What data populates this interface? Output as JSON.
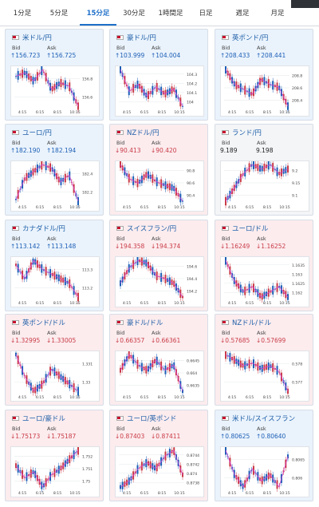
{
  "tabs": [
    {
      "label": "1分足",
      "active": false
    },
    {
      "label": "5分足",
      "active": false
    },
    {
      "label": "15分足",
      "active": true
    },
    {
      "label": "30分足",
      "active": false
    },
    {
      "label": "1時間足",
      "active": false
    },
    {
      "label": "日足",
      "active": false
    },
    {
      "label": "週足",
      "active": false
    },
    {
      "label": "月足",
      "active": false
    }
  ],
  "labels": {
    "bid": "Bid",
    "ask": "Ask"
  },
  "colors": {
    "up": "#1d5fb6",
    "down": "#c93b46",
    "title": "#1f5fa8",
    "ma": "#d63bd6"
  },
  "cards": [
    {
      "name": "usd-jpy",
      "pair": "米ドル/円",
      "trend": "up",
      "bid": "↑156.723",
      "ask": "↑156.725",
      "bid_dir": "up",
      "ask_dir": "up",
      "x_labels": [
        "4:15",
        "6:15",
        "8:15",
        "10:15"
      ],
      "y_labels": [
        "156.8",
        "156.6"
      ],
      "close": [
        156.78,
        156.8,
        156.75,
        156.82,
        156.7,
        156.74,
        156.72,
        156.6
      ]
    },
    {
      "name": "aud-jpy",
      "pair": "豪ドル/円",
      "trend": "up",
      "bid": "↑103.999",
      "ask": "↑104.004",
      "bid_dir": "up",
      "ask_dir": "up",
      "x_labels": [
        "4:15",
        "6:15",
        "8:15",
        "10:15"
      ],
      "y_labels": [
        "104.3",
        "104.2",
        "104.1",
        "104"
      ],
      "close": [
        104.3,
        104.12,
        104.18,
        104.08,
        104.16,
        104.1,
        104.14,
        104.0
      ]
    },
    {
      "name": "gbp-jpy",
      "pair": "英ポンド/円",
      "trend": "up",
      "bid": "↑208.433",
      "ask": "↑208.441",
      "bid_dir": "up",
      "ask_dir": "up",
      "x_labels": [
        "4:15",
        "6:15",
        "8:15",
        "10:15"
      ],
      "y_labels": [
        "208.8",
        "208.6",
        "208.4"
      ],
      "close": [
        208.8,
        208.65,
        208.6,
        208.55,
        208.7,
        208.65,
        208.62,
        208.43
      ]
    },
    {
      "name": "eur-jpy",
      "pair": "ユーロ/円",
      "trend": "up",
      "bid": "↑182.190",
      "ask": "↑182.194",
      "bid_dir": "up",
      "ask_dir": "up",
      "x_labels": [
        "4:15",
        "6:15",
        "8:15",
        "10:15"
      ],
      "y_labels": [
        "182.4",
        "182.2"
      ],
      "close": [
        182.2,
        182.32,
        182.36,
        182.4,
        182.38,
        182.3,
        182.34,
        182.19
      ]
    },
    {
      "name": "nzd-jpy",
      "pair": "NZドル/円",
      "trend": "down",
      "bid": "↓90.413",
      "ask": "↓90.420",
      "bid_dir": "down",
      "ask_dir": "down",
      "x_labels": [
        "4:15",
        "6:15",
        "8:15",
        "10:15"
      ],
      "y_labels": [
        "90.8",
        "90.6",
        "90.4"
      ],
      "close": [
        90.8,
        90.65,
        90.6,
        90.7,
        90.62,
        90.58,
        90.55,
        90.41
      ]
    },
    {
      "name": "zar-jpy",
      "pair": "ランド/円",
      "trend": "flat",
      "bid": "9.189",
      "ask": "9.198",
      "bid_dir": "flat",
      "ask_dir": "flat",
      "x_labels": [
        "4:15",
        "6:15",
        "8:15",
        "10:15"
      ],
      "y_labels": [
        "9.2",
        "9.15",
        "9.1"
      ],
      "close": [
        9.12,
        9.15,
        9.18,
        9.2,
        9.19,
        9.2,
        9.18,
        9.19
      ]
    },
    {
      "name": "cad-jpy",
      "pair": "カナダドル/円",
      "trend": "up",
      "bid": "↑113.142",
      "ask": "↑113.148",
      "bid_dir": "up",
      "ask_dir": "up",
      "x_labels": [
        "4:15",
        "6:15",
        "8:15",
        "10:15"
      ],
      "y_labels": [
        "113.3",
        "113.2"
      ],
      "close": [
        113.28,
        113.22,
        113.3,
        113.26,
        113.24,
        113.22,
        113.2,
        113.14
      ]
    },
    {
      "name": "chf-jpy",
      "pair": "スイスフラン/円",
      "trend": "down",
      "bid": "↓194.358",
      "ask": "↓194.374",
      "bid_dir": "down",
      "ask_dir": "down",
      "x_labels": [
        "4:15",
        "6:15",
        "8:15",
        "10:15"
      ],
      "y_labels": [
        "194.6",
        "194.4",
        "194.2"
      ],
      "close": [
        194.45,
        194.55,
        194.6,
        194.58,
        194.5,
        194.48,
        194.45,
        194.36
      ]
    },
    {
      "name": "eur-usd",
      "pair": "ユーロ/ドル",
      "trend": "down",
      "bid": "↓1.16249",
      "ask": "↓1.16252",
      "bid_dir": "down",
      "ask_dir": "down",
      "x_labels": [
        "4:15",
        "6:15",
        "8:15",
        "10:15"
      ],
      "y_labels": [
        "1.1635",
        "1.163",
        "1.1625",
        "1.162"
      ],
      "close": [
        1.1632,
        1.1628,
        1.1626,
        1.1627,
        1.1625,
        1.1626,
        1.1627,
        1.1625
      ]
    },
    {
      "name": "gbp-usd",
      "pair": "英ポンド/ドル",
      "trend": "down",
      "bid": "↓1.32995",
      "ask": "↓1.33005",
      "bid_dir": "down",
      "ask_dir": "down",
      "x_labels": [
        "4:15",
        "6:15",
        "8:15",
        "10:15"
      ],
      "y_labels": [
        "1.331",
        "1.33"
      ],
      "close": [
        1.3305,
        1.3302,
        1.33,
        1.3301,
        1.3303,
        1.3302,
        1.3301,
        1.33
      ]
    },
    {
      "name": "aud-usd",
      "pair": "豪ドル/ドル",
      "trend": "down",
      "bid": "↓0.66357",
      "ask": "↓0.66361",
      "bid_dir": "down",
      "ask_dir": "down",
      "x_labels": [
        "4:15",
        "6:15",
        "8:15",
        "10:15"
      ],
      "y_labels": [
        "0.6645",
        "0.664",
        "0.6635"
      ],
      "close": [
        0.664,
        0.6643,
        0.6641,
        0.664,
        0.6642,
        0.664,
        0.6641,
        0.6636
      ]
    },
    {
      "name": "nzd-usd",
      "pair": "NZドル/ドル",
      "trend": "down",
      "bid": "↓0.57685",
      "ask": "↓0.57699",
      "bid_dir": "down",
      "ask_dir": "down",
      "x_labels": [
        "4:15",
        "6:15",
        "8:15",
        "10:15"
      ],
      "y_labels": [
        "0.578",
        "0.577"
      ],
      "close": [
        0.5782,
        0.578,
        0.5778,
        0.5779,
        0.5777,
        0.5778,
        0.5776,
        0.5769
      ]
    },
    {
      "name": "eur-aud",
      "pair": "ユーロ/豪ドル",
      "trend": "down",
      "bid": "↓1.75173",
      "ask": "↓1.75187",
      "bid_dir": "down",
      "ask_dir": "down",
      "x_labels": [
        "4:15",
        "6:15",
        "8:15",
        "10:15"
      ],
      "y_labels": [
        "1.752",
        "1.751",
        "1.75"
      ],
      "close": [
        1.7512,
        1.7508,
        1.751,
        1.7505,
        1.7509,
        1.7511,
        1.7514,
        1.7517
      ]
    },
    {
      "name": "eur-gbp",
      "pair": "ユーロ/英ポンド",
      "trend": "down",
      "bid": "↓0.87403",
      "ask": "↓0.87411",
      "bid_dir": "down",
      "ask_dir": "down",
      "x_labels": [
        "4:15",
        "6:15",
        "8:15",
        "10:15"
      ],
      "y_labels": [
        "0.8744",
        "0.8742",
        "0.874",
        "0.8738"
      ],
      "close": [
        0.8738,
        0.8739,
        0.8741,
        0.8742,
        0.8741,
        0.8743,
        0.8744,
        0.874
      ]
    },
    {
      "name": "usd-chf",
      "pair": "米ドル/スイスフラン",
      "trend": "up",
      "bid": "↑0.80625",
      "ask": "↑0.80640",
      "bid_dir": "up",
      "ask_dir": "up",
      "x_labels": [
        "4:15",
        "6:15",
        "8:15",
        "10:15"
      ],
      "y_labels": [
        "0.8065",
        "0.806"
      ],
      "close": [
        0.8064,
        0.806,
        0.8058,
        0.8061,
        0.8059,
        0.806,
        0.8058,
        0.8063
      ]
    }
  ]
}
